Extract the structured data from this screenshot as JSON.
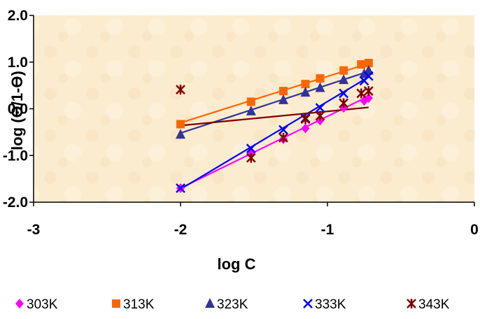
{
  "chart_data": {
    "type": "scatter",
    "xlabel": "log C",
    "ylabel": "log (ϴ/1-ϴ)",
    "xlim": [
      -3,
      0
    ],
    "ylim": [
      -2.0,
      2.0
    ],
    "x_ticks": [
      "-3",
      "-2",
      "-1",
      "0"
    ],
    "y_ticks": [
      "-2.0",
      "-1.0",
      "0.0",
      "1.0",
      "2.0"
    ],
    "grid": false,
    "legend_position": "bottom",
    "trendlines": true,
    "series": [
      {
        "name": "303K",
        "color": "#ff00ff",
        "marker": "diamond",
        "x": [
          -2.0,
          -1.52,
          -1.3,
          -1.15,
          -1.05,
          -0.89,
          -0.75,
          -0.72
        ],
        "y": [
          -1.7,
          -0.97,
          -0.65,
          -0.42,
          -0.25,
          0.02,
          0.17,
          0.23
        ],
        "fit": [
          [
            -2.0,
            -1.7
          ],
          [
            -0.72,
            0.27
          ]
        ]
      },
      {
        "name": "313K",
        "color": "#ff6600",
        "marker": "square",
        "x": [
          -2.0,
          -1.52,
          -1.3,
          -1.15,
          -1.05,
          -0.89,
          -0.77,
          -0.72
        ],
        "y": [
          -0.33,
          0.15,
          0.38,
          0.53,
          0.65,
          0.82,
          0.95,
          0.98
        ],
        "fit": [
          [
            -2.0,
            -0.3
          ],
          [
            -0.72,
            0.97
          ]
        ]
      },
      {
        "name": "323K",
        "color": "#333399",
        "marker": "triangle",
        "x": [
          -2.0,
          -1.52,
          -1.3,
          -1.15,
          -1.05,
          -0.89,
          -0.75,
          -0.72
        ],
        "y": [
          -0.55,
          -0.05,
          0.19,
          0.35,
          0.45,
          0.62,
          0.75,
          0.82
        ],
        "fit": [
          [
            -2.0,
            -0.52
          ],
          [
            -0.72,
            0.8
          ]
        ]
      },
      {
        "name": "333K",
        "color": "#0000ff",
        "marker": "x",
        "x": [
          -2.0,
          -1.52,
          -1.3,
          -1.15,
          -1.05,
          -0.89,
          -0.75,
          -0.72
        ],
        "y": [
          -1.7,
          -0.85,
          -0.45,
          -0.2,
          0.02,
          0.33,
          0.6,
          0.7
        ],
        "fit": [
          [
            -2.0,
            -1.72
          ],
          [
            -0.72,
            0.68
          ]
        ]
      },
      {
        "name": "343K",
        "color": "#800000",
        "marker": "star",
        "x": [
          -2.0,
          -1.52,
          -1.3,
          -1.15,
          -1.05,
          -0.89,
          -0.77,
          -0.72
        ],
        "y": [
          0.41,
          -1.05,
          -0.62,
          -0.22,
          -0.15,
          0.12,
          0.33,
          0.38
        ],
        "fit": [
          [
            -2.0,
            -0.36
          ],
          [
            -0.72,
            0.03
          ]
        ]
      }
    ]
  }
}
